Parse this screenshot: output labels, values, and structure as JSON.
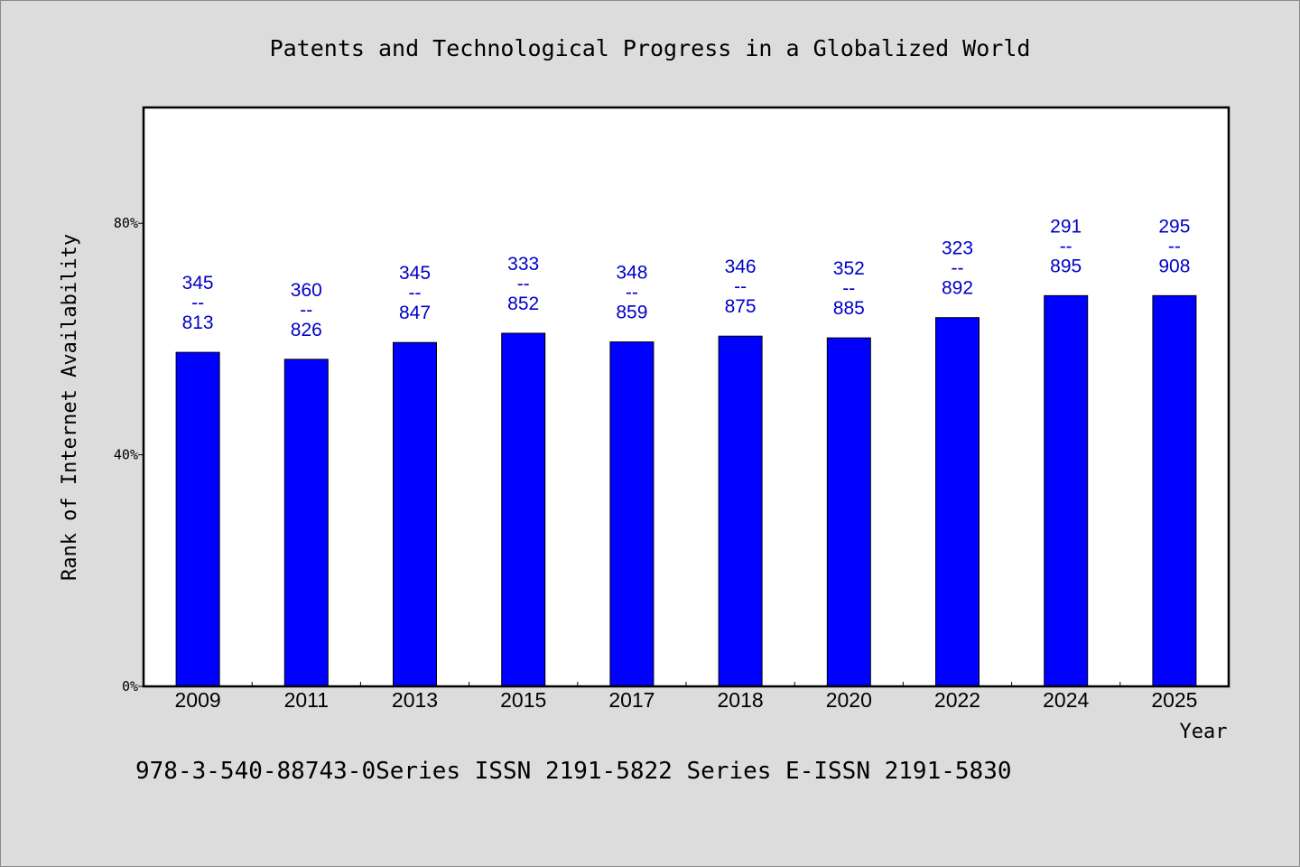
{
  "chart_data": {
    "type": "bar",
    "title": "Patents and Technological Progress in a Globalized World",
    "xlabel": "Year",
    "ylabel": "Rank of Internet Availability",
    "ylim": [
      0,
      100
    ],
    "yticks": [
      0,
      40,
      80
    ],
    "ytick_labels": [
      "0%",
      "40%",
      "80%"
    ],
    "grid": false,
    "bar_color": "#0000ff",
    "label_color": "#0000c8",
    "categories": [
      "2009",
      "2011",
      "2013",
      "2015",
      "2017",
      "2018",
      "2020",
      "2022",
      "2024",
      "2025"
    ],
    "values": [
      57.7,
      56.5,
      59.4,
      61.0,
      59.5,
      60.5,
      60.2,
      63.7,
      67.5,
      67.5
    ],
    "data_labels": [
      [
        "345",
        "--",
        "813"
      ],
      [
        "360",
        "--",
        "826"
      ],
      [
        "345",
        "--",
        "847"
      ],
      [
        "333",
        "--",
        "852"
      ],
      [
        "348",
        "--",
        "859"
      ],
      [
        "346",
        "--",
        "875"
      ],
      [
        "352",
        "--",
        "885"
      ],
      [
        "323",
        "--",
        "892"
      ],
      [
        "291",
        "--",
        "895"
      ],
      [
        "295",
        "--",
        "908"
      ]
    ]
  },
  "footer_note": "978-3-540-88743-0Series ISSN 2191-5822 Series E-ISSN 2191-5830"
}
